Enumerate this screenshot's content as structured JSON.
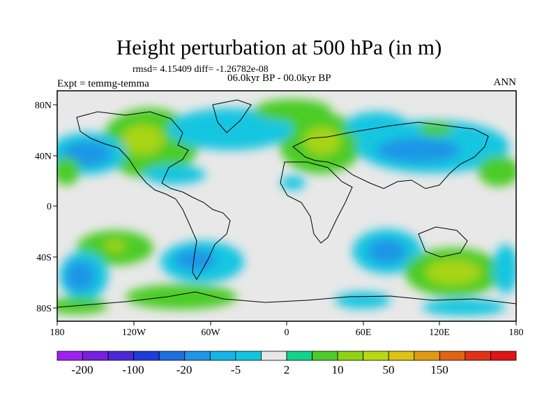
{
  "title": "Height perturbation at 500 hPa (in m)",
  "stats_text": "rmsd= 4.15409 diff= -1.26782e-08",
  "period_text": "06.0kyr BP - 00.0kyr BP",
  "experiment_text": "Expt = temmg-temma",
  "season": "ANN",
  "lat_labels": [
    "80N",
    "40N",
    "0",
    "40S",
    "80S"
  ],
  "lon_labels": [
    "180",
    "120W",
    "60W",
    "0",
    "60E",
    "120E",
    "180"
  ],
  "colorbar": {
    "colors": [
      "#a020f0",
      "#7a1ee0",
      "#4a28d8",
      "#1e3cd8",
      "#1e6ee0",
      "#1e96e6",
      "#14b4e6",
      "#12c6e0",
      "#e8e8e8",
      "#12d38a",
      "#4ccc28",
      "#8ed214",
      "#b8d814",
      "#dcc414",
      "#e09a14",
      "#e06414",
      "#e03214",
      "#e01414"
    ],
    "labels": [
      "-200",
      "-100",
      "-20",
      "-5",
      "2",
      "10",
      "50",
      "150"
    ]
  },
  "chart_data": {
    "type": "heatmap",
    "projection": "cylindrical equidistant",
    "variable": "Height perturbation at 500 hPa (in m)",
    "xlim": [
      -180,
      180
    ],
    "ylim": [
      -90,
      90
    ],
    "anomaly_regions": [
      {
        "region": "North America / North Pacific",
        "lon": -110,
        "lat": 50,
        "sign": "positive",
        "approx": 10
      },
      {
        "region": "Europe / Western Russia",
        "lon": 30,
        "lat": 50,
        "sign": "positive",
        "approx": 10
      },
      {
        "region": "Northeast Pacific",
        "lon": -155,
        "lat": 45,
        "sign": "negative",
        "approx": -20
      },
      {
        "region": "South Indian Ocean",
        "lon": 50,
        "lat": -35,
        "sign": "negative",
        "approx": -5
      },
      {
        "region": "South Pacific near Australia",
        "lon": 130,
        "lat": -50,
        "sign": "positive",
        "approx": 20
      },
      {
        "region": "Southern Ocean south of Pacific",
        "lon": -155,
        "lat": -45,
        "sign": "negative",
        "approx": -20
      }
    ]
  }
}
